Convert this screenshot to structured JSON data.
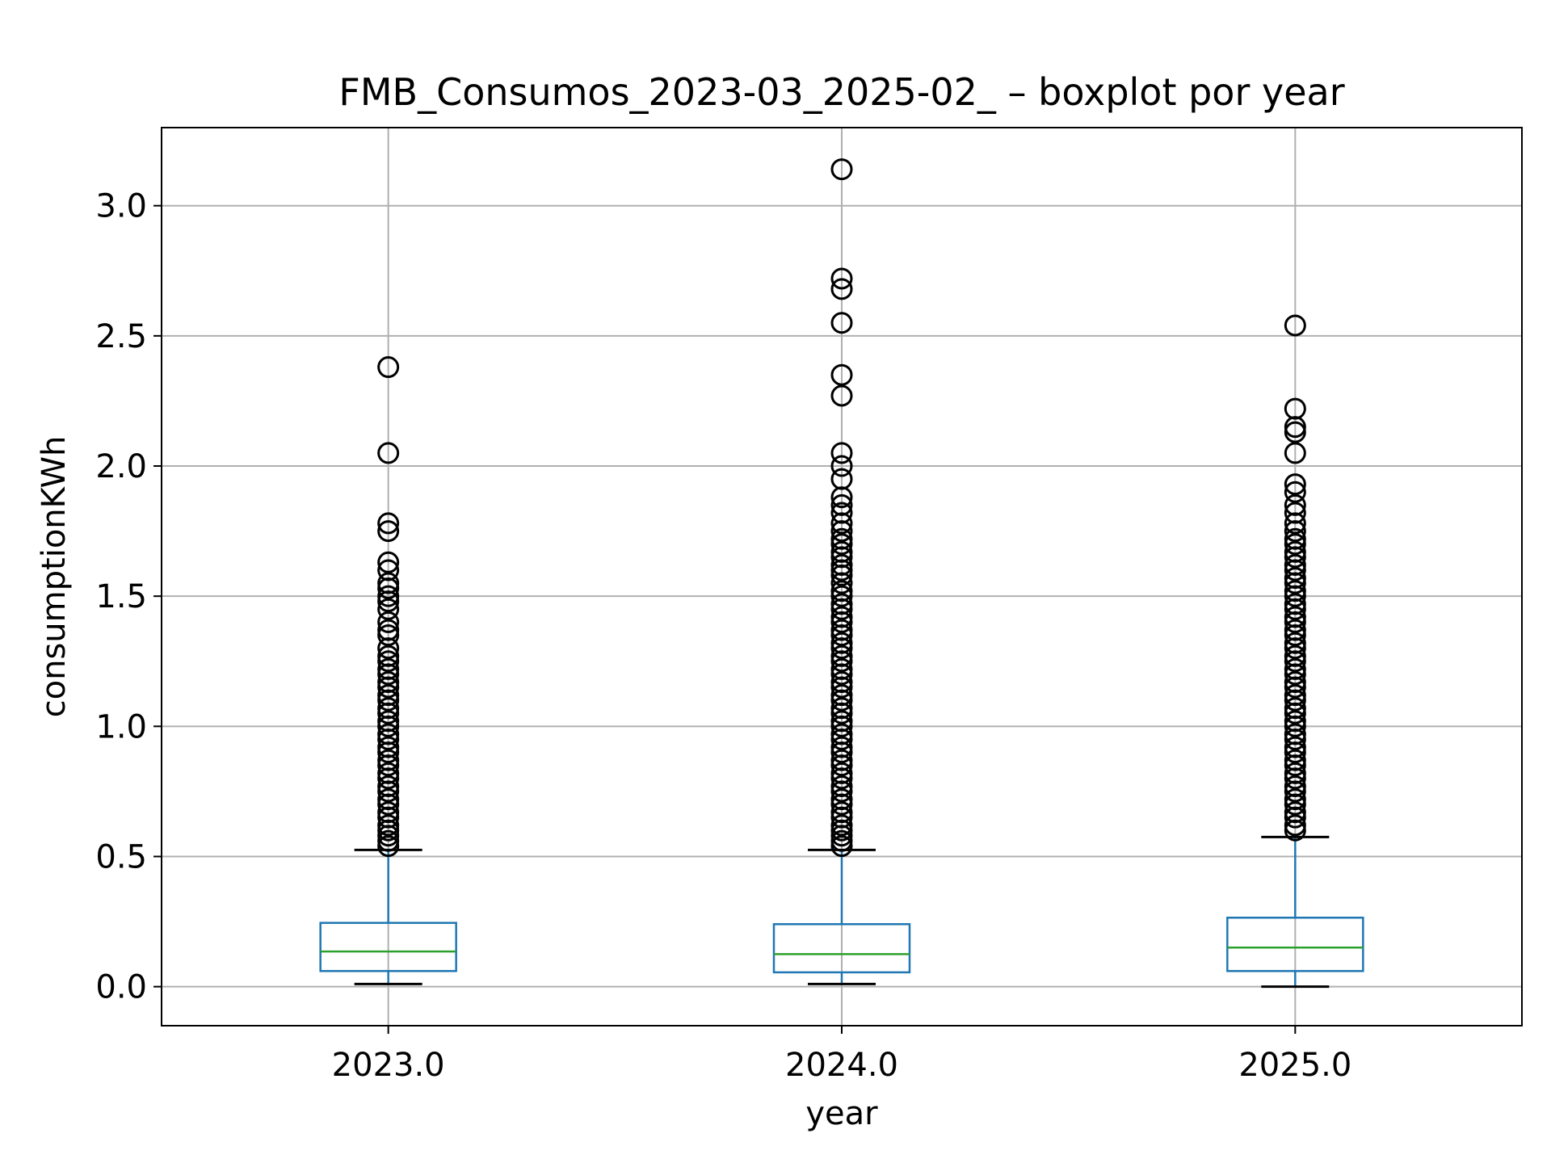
{
  "chart_data": {
    "type": "boxplot",
    "title": "FMB_Consumos_2023-03_2025-02_ – boxplot por year",
    "xlabel": "year",
    "ylabel": "consumptionKWh",
    "categories": [
      "2023.0",
      "2024.0",
      "2025.0"
    ],
    "ylim": [
      -0.15,
      3.3
    ],
    "yticks": [
      0.0,
      0.5,
      1.0,
      1.5,
      2.0,
      2.5,
      3.0
    ],
    "ytick_labels": [
      "0.0",
      "0.5",
      "1.0",
      "1.5",
      "2.0",
      "2.5",
      "3.0"
    ],
    "grid": true,
    "boxes": [
      {
        "category": "2023.0",
        "whisker_low": 0.01,
        "q1": 0.06,
        "median": 0.135,
        "q3": 0.245,
        "whisker_high": 0.525,
        "outliers": [
          2.38,
          2.05,
          1.78,
          1.75,
          1.63,
          1.6,
          1.55,
          1.53,
          1.5,
          1.48,
          1.45,
          1.4,
          1.37,
          1.35,
          1.3,
          1.27,
          1.25,
          1.22,
          1.2,
          1.17,
          1.15,
          1.12,
          1.1,
          1.07,
          1.05,
          1.02,
          1.0,
          0.97,
          0.95,
          0.92,
          0.9,
          0.87,
          0.85,
          0.82,
          0.8,
          0.77,
          0.75,
          0.72,
          0.7,
          0.67,
          0.65,
          0.62,
          0.6,
          0.58,
          0.56,
          0.54
        ]
      },
      {
        "category": "2024.0",
        "whisker_low": 0.01,
        "q1": 0.055,
        "median": 0.125,
        "q3": 0.24,
        "whisker_high": 0.525,
        "outliers": [
          3.14,
          2.72,
          2.68,
          2.55,
          2.35,
          2.27,
          2.05,
          2.0,
          1.95,
          1.88,
          1.85,
          1.82,
          1.78,
          1.75,
          1.72,
          1.7,
          1.67,
          1.65,
          1.62,
          1.6,
          1.58,
          1.55,
          1.52,
          1.5,
          1.47,
          1.45,
          1.42,
          1.4,
          1.37,
          1.35,
          1.32,
          1.3,
          1.27,
          1.25,
          1.22,
          1.2,
          1.17,
          1.15,
          1.12,
          1.1,
          1.07,
          1.05,
          1.02,
          1.0,
          0.97,
          0.95,
          0.92,
          0.9,
          0.87,
          0.85,
          0.82,
          0.8,
          0.77,
          0.75,
          0.72,
          0.7,
          0.67,
          0.65,
          0.62,
          0.6,
          0.58,
          0.56,
          0.54
        ]
      },
      {
        "category": "2025.0",
        "whisker_low": 0.0,
        "q1": 0.06,
        "median": 0.15,
        "q3": 0.265,
        "whisker_high": 0.575,
        "outliers": [
          2.54,
          2.22,
          2.15,
          2.13,
          2.05,
          1.93,
          1.9,
          1.85,
          1.82,
          1.78,
          1.75,
          1.72,
          1.7,
          1.67,
          1.65,
          1.62,
          1.6,
          1.57,
          1.55,
          1.52,
          1.5,
          1.47,
          1.45,
          1.42,
          1.4,
          1.37,
          1.35,
          1.32,
          1.3,
          1.27,
          1.25,
          1.22,
          1.2,
          1.17,
          1.15,
          1.12,
          1.1,
          1.07,
          1.05,
          1.02,
          1.0,
          0.97,
          0.95,
          0.92,
          0.9,
          0.87,
          0.85,
          0.82,
          0.8,
          0.77,
          0.75,
          0.72,
          0.7,
          0.67,
          0.65,
          0.62,
          0.6
        ]
      }
    ],
    "colors": {
      "box": "#1f77b4",
      "median": "#2ca02c",
      "whisker_cap": "#000000",
      "outlier_edge": "#000000",
      "grid": "#b0b0b0"
    }
  }
}
